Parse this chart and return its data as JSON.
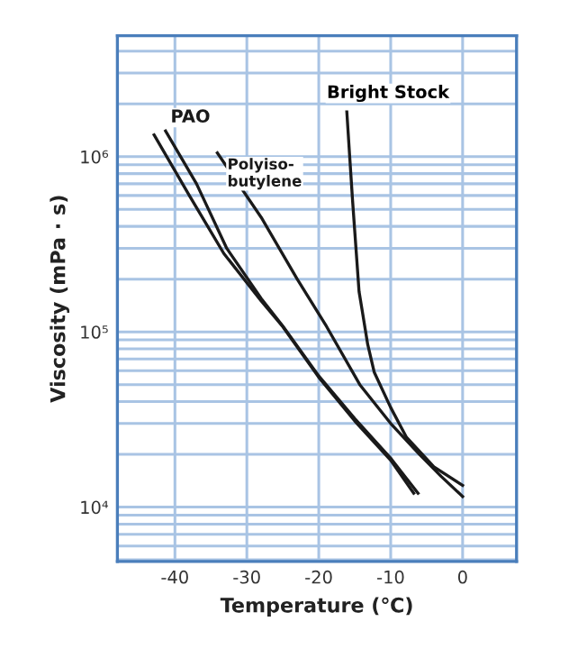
{
  "chart_data": {
    "type": "line",
    "xlabel": "Temperature (℃)",
    "ylabel": "Viscosity (mPa · s)",
    "log": "y",
    "xlim": [
      -48,
      7.5
    ],
    "xticks": [
      -40,
      -30,
      -20,
      -10,
      0
    ],
    "ylim": [
      4900,
      4900000
    ],
    "yticks": [
      {
        "value": 5000,
        "label": null
      },
      {
        "value": 6000,
        "label": null
      },
      {
        "value": 7000,
        "label": null
      },
      {
        "value": 8000,
        "label": null
      },
      {
        "value": 9000,
        "label": null
      },
      {
        "value": 10000,
        "label": "10⁴"
      },
      {
        "value": 20000,
        "label": null
      },
      {
        "value": 30000,
        "label": null
      },
      {
        "value": 40000,
        "label": null
      },
      {
        "value": 50000,
        "label": null
      },
      {
        "value": 60000,
        "label": null
      },
      {
        "value": 70000,
        "label": null
      },
      {
        "value": 80000,
        "label": null
      },
      {
        "value": 90000,
        "label": null
      },
      {
        "value": 100000,
        "label": "10⁵"
      },
      {
        "value": 200000,
        "label": null
      },
      {
        "value": 300000,
        "label": null
      },
      {
        "value": 400000,
        "label": null
      },
      {
        "value": 500000,
        "label": null
      },
      {
        "value": 600000,
        "label": null
      },
      {
        "value": 700000,
        "label": null
      },
      {
        "value": 800000,
        "label": null
      },
      {
        "value": 900000,
        "label": null
      },
      {
        "value": 1000000,
        "label": "10⁶"
      },
      {
        "value": 2000000,
        "label": null
      },
      {
        "value": 3000000,
        "label": null
      },
      {
        "value": 4000000,
        "label": null
      }
    ],
    "grid": true,
    "legend": false,
    "marker": "none",
    "line_style": "solid",
    "series": [
      {
        "color": "#1a1a1a",
        "x": [
          -42.9,
          -38,
          -33.2,
          -28,
          -25,
          -20,
          -15,
          -10,
          -6.8
        ],
        "values": [
          1330000,
          600000,
          280000,
          150000,
          107000,
          55000,
          31000,
          18500,
          12000
        ]
      },
      {
        "name": "PAO",
        "color": "#1a1a1a",
        "x": [
          -41.3,
          -37,
          -32.8,
          -28,
          -25,
          -20,
          -15,
          -10,
          -6.2
        ],
        "values": [
          1400000,
          700000,
          300000,
          155000,
          108000,
          56000,
          32000,
          19000,
          12000
        ]
      },
      {
        "name": "Polyiso-\nbutylene",
        "color": "#1a1a1a",
        "x": [
          -34.1,
          -28,
          -23,
          -18.9,
          -14.3,
          -10,
          -6,
          -3,
          0
        ],
        "values": [
          1050000,
          450000,
          200000,
          107000,
          50000,
          30000,
          20000,
          15000,
          11500
        ]
      },
      {
        "name": "Bright Stock",
        "color": "#1a1a1a",
        "x": [
          -16.1,
          -15.7,
          -15.3,
          -14.4,
          -14,
          -13.2,
          -12.3,
          -10,
          -7.8,
          -4,
          0
        ],
        "values": [
          1800000,
          1000000,
          560000,
          170000,
          135000,
          85000,
          59000,
          37000,
          25000,
          17000,
          13300
        ]
      }
    ]
  }
}
